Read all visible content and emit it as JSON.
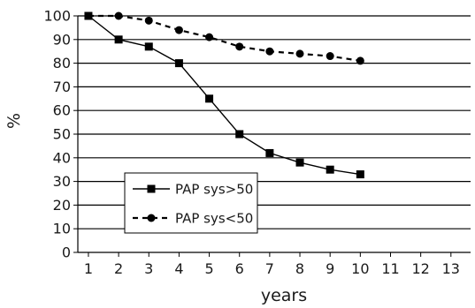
{
  "chart_data": {
    "type": "line",
    "xlabel": "years",
    "ylabel": "%",
    "x_ticks": [
      1,
      2,
      3,
      4,
      5,
      6,
      7,
      8,
      9,
      10,
      11,
      12,
      13
    ],
    "xlim": [
      0.65,
      13.65
    ],
    "y_ticks": [
      0,
      10,
      20,
      30,
      40,
      50,
      60,
      70,
      80,
      90,
      100
    ],
    "ylim": [
      0,
      100
    ],
    "grid": "horizontal",
    "legend_position": "lower-left",
    "series": [
      {
        "name": "PAP sys>50",
        "marker": "square",
        "line_style": "solid",
        "color": "#000000",
        "x": [
          1,
          2,
          3,
          4,
          5,
          6,
          7,
          8,
          9,
          10
        ],
        "y": [
          100,
          90,
          87,
          80,
          65,
          50,
          42,
          38,
          35,
          33
        ]
      },
      {
        "name": "PAP sys<50",
        "marker": "circle",
        "line_style": "dashed",
        "color": "#000000",
        "x": [
          1,
          2,
          3,
          4,
          5,
          6,
          7,
          8,
          9,
          10
        ],
        "y": [
          100,
          100,
          98,
          94,
          91,
          87,
          85,
          84,
          83,
          81
        ]
      }
    ]
  }
}
